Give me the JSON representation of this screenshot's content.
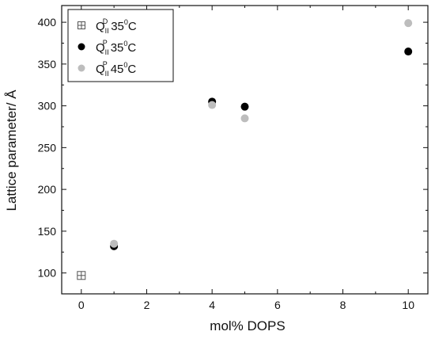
{
  "chart_data": {
    "type": "scatter",
    "title": "",
    "xlabel": "mol% DOPS",
    "ylabel": "Lattice parameter/ Å",
    "xlim": [
      -0.6,
      10.6
    ],
    "ylim": [
      75,
      420
    ],
    "xticks": [
      0,
      2,
      4,
      6,
      8,
      10
    ],
    "yticks": [
      100,
      150,
      200,
      250,
      300,
      350,
      400
    ],
    "grid": false,
    "legend_position": "top-left",
    "series": [
      {
        "legend": {
          "base": "Q",
          "sub": "II",
          "sup": "D",
          "temp": "35",
          "deg": "0",
          "unit": "C"
        },
        "marker": "square-cross",
        "color": "#555555",
        "points": [
          {
            "x": 0,
            "y": 97
          }
        ]
      },
      {
        "legend": {
          "base": "Q",
          "sub": "II",
          "sup": "P",
          "temp": "35",
          "deg": "0",
          "unit": "C"
        },
        "marker": "circle",
        "color": "#000000",
        "points": [
          {
            "x": 1,
            "y": 132
          },
          {
            "x": 4,
            "y": 305
          },
          {
            "x": 5,
            "y": 299
          },
          {
            "x": 10,
            "y": 365
          }
        ]
      },
      {
        "legend": {
          "base": "Q",
          "sub": "II",
          "sup": "P",
          "temp": "45",
          "deg": "0",
          "unit": "C"
        },
        "marker": "circle",
        "color": "#bdbdbd",
        "points": [
          {
            "x": 1,
            "y": 135
          },
          {
            "x": 4,
            "y": 301
          },
          {
            "x": 5,
            "y": 285
          },
          {
            "x": 10,
            "y": 399
          }
        ]
      }
    ]
  }
}
